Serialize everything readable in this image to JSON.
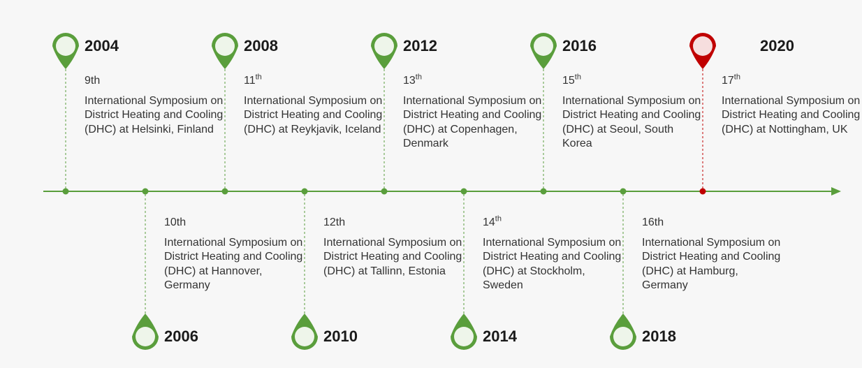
{
  "colors": {
    "accent": "#5a9e3c",
    "highlight": "#c00000",
    "marker_fill": "#eef5ea",
    "highlight_fill": "#f6dede"
  },
  "milestones": [
    {
      "year": "2004",
      "ordinal": "9",
      "suffix": "th",
      "superscript": false,
      "desc": "International Symposium on District Heating and Cooling (DHC) at Helsinki, Finland",
      "side": "top",
      "highlight": false
    },
    {
      "year": "2006",
      "ordinal": "10",
      "suffix": "th",
      "superscript": false,
      "desc": "International Symposium on District Heating and Cooling (DHC) at Hannover, Germany",
      "side": "bottom",
      "highlight": false
    },
    {
      "year": "2008",
      "ordinal": "11",
      "suffix": "th",
      "superscript": true,
      "desc": "International Symposium on District Heating and Cooling (DHC) at Reykjavik, Iceland",
      "side": "top",
      "highlight": false
    },
    {
      "year": "2010",
      "ordinal": "12",
      "suffix": "th",
      "superscript": false,
      "desc": "International Symposium on District Heating and Cooling (DHC) at Tallinn, Estonia",
      "side": "bottom",
      "highlight": false
    },
    {
      "year": "2012",
      "ordinal": "13",
      "suffix": "th",
      "superscript": true,
      "desc": "International Symposium on District Heating and Cooling (DHC) at Copenhagen, Denmark",
      "side": "top",
      "highlight": false
    },
    {
      "year": "2014",
      "ordinal": "14",
      "suffix": "th",
      "superscript": true,
      "desc": "International Symposium on District Heating and Cooling (DHC) at Stockholm, Sweden",
      "side": "bottom",
      "highlight": false
    },
    {
      "year": "2016",
      "ordinal": "15",
      "suffix": "th",
      "superscript": true,
      "desc": "International Symposium on District Heating and Cooling (DHC) at Seoul, South Korea",
      "side": "top",
      "highlight": false
    },
    {
      "year": "2018",
      "ordinal": "16",
      "suffix": "th",
      "superscript": false,
      "desc": "International Symposium on District Heating and Cooling (DHC) at Hamburg, Germany",
      "side": "bottom",
      "highlight": false
    },
    {
      "year": "2020",
      "ordinal": "17",
      "suffix": "th",
      "superscript": true,
      "desc": "International Symposium on District Heating and Cooling (DHC) at Nottingham, UK",
      "side": "top",
      "highlight": true
    }
  ]
}
